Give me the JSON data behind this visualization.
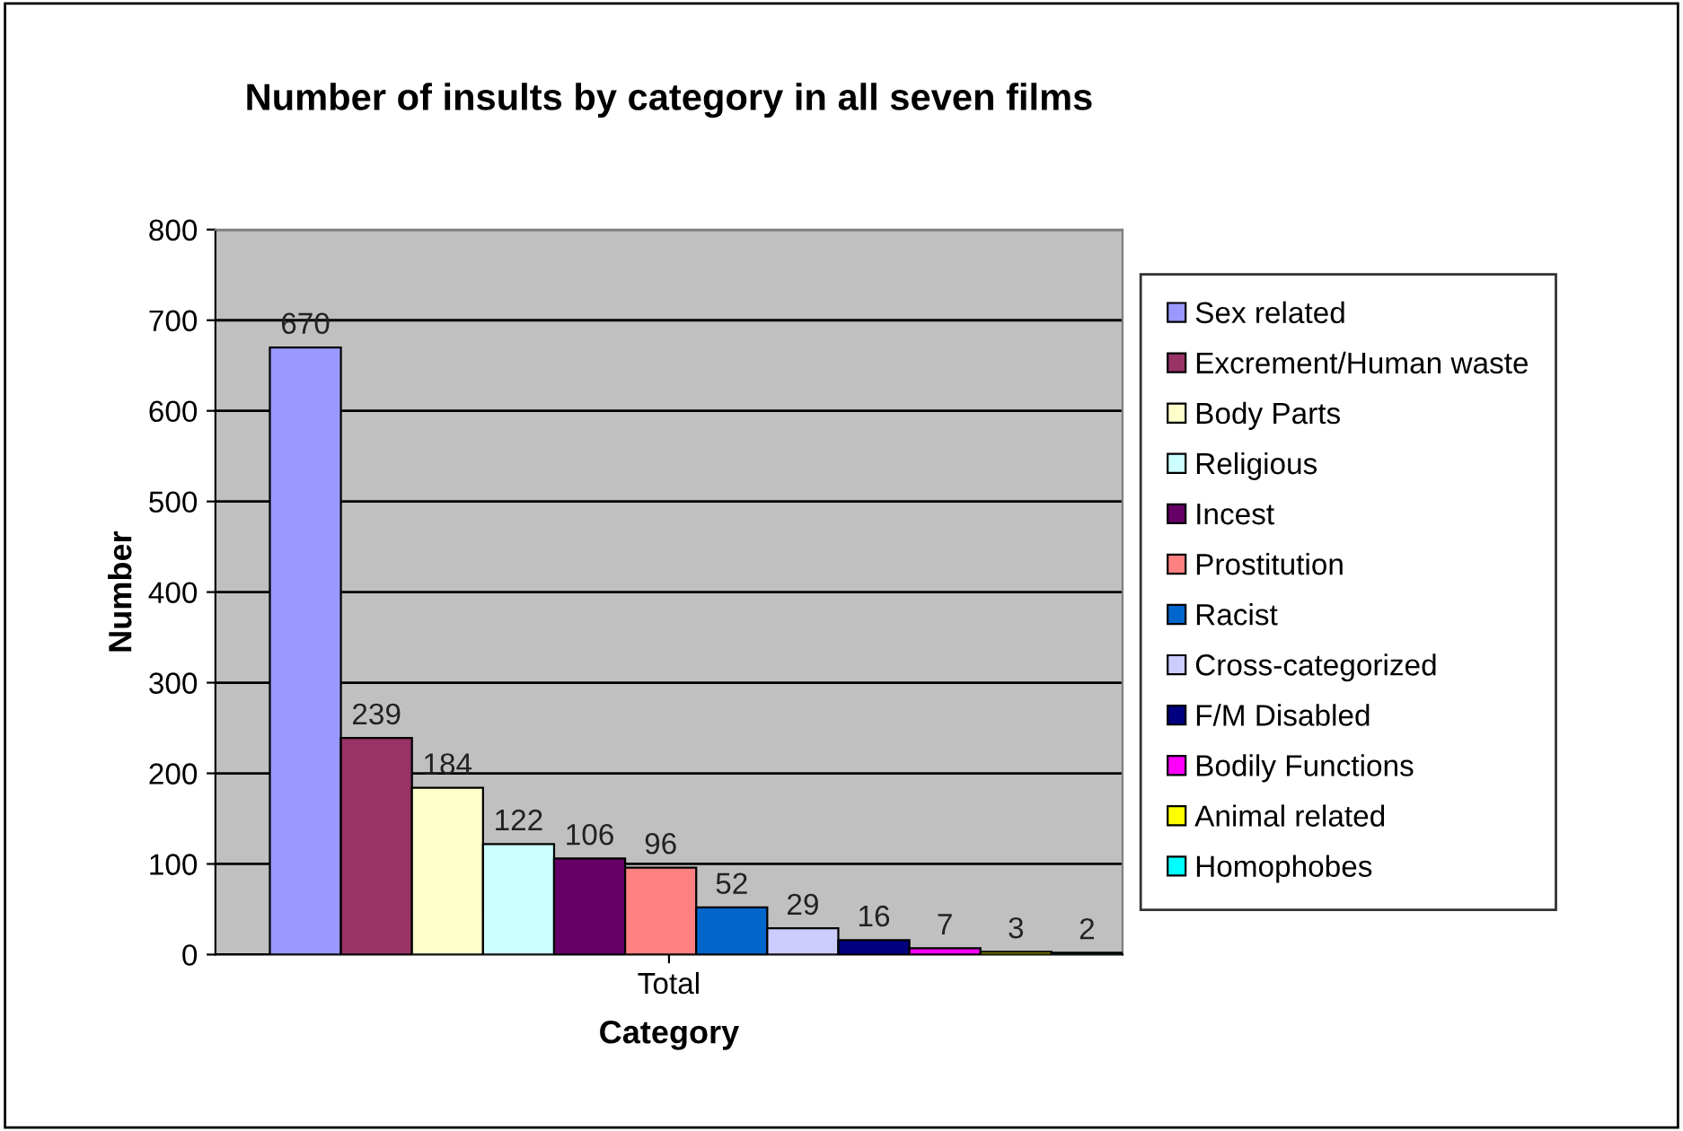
{
  "chart_data": {
    "type": "bar",
    "title": "Number of insults by category in all seven films",
    "xlabel": "Category",
    "ylabel": "Number",
    "categories": [
      "Total"
    ],
    "series": [
      {
        "name": "Sex related",
        "color": "#9999ff",
        "values": [
          670
        ]
      },
      {
        "name": "Excrement/Human waste",
        "color": "#993366",
        "values": [
          239
        ]
      },
      {
        "name": "Body Parts",
        "color": "#ffffcc",
        "values": [
          184
        ]
      },
      {
        "name": "Religious",
        "color": "#ccffff",
        "values": [
          122
        ]
      },
      {
        "name": "Incest",
        "color": "#660066",
        "values": [
          106
        ]
      },
      {
        "name": "Prostitution",
        "color": "#ff8080",
        "values": [
          96
        ]
      },
      {
        "name": "Racist",
        "color": "#0066cc",
        "values": [
          52
        ]
      },
      {
        "name": "Cross-categorized",
        "color": "#ccccff",
        "values": [
          29
        ]
      },
      {
        "name": "F/M Disabled",
        "color": "#000080",
        "values": [
          16
        ]
      },
      {
        "name": "Bodily Functions",
        "color": "#ff00ff",
        "values": [
          7
        ]
      },
      {
        "name": "Animal related",
        "color": "#ffff00",
        "values": [
          3
        ]
      },
      {
        "name": "Homophobes",
        "color": "#00ffff",
        "values": [
          2
        ]
      }
    ],
    "ylim": [
      0,
      800
    ],
    "yticks": [
      0,
      100,
      200,
      300,
      400,
      500,
      600,
      700,
      800
    ],
    "grid": "y",
    "legend": "right",
    "data_labels": true
  }
}
